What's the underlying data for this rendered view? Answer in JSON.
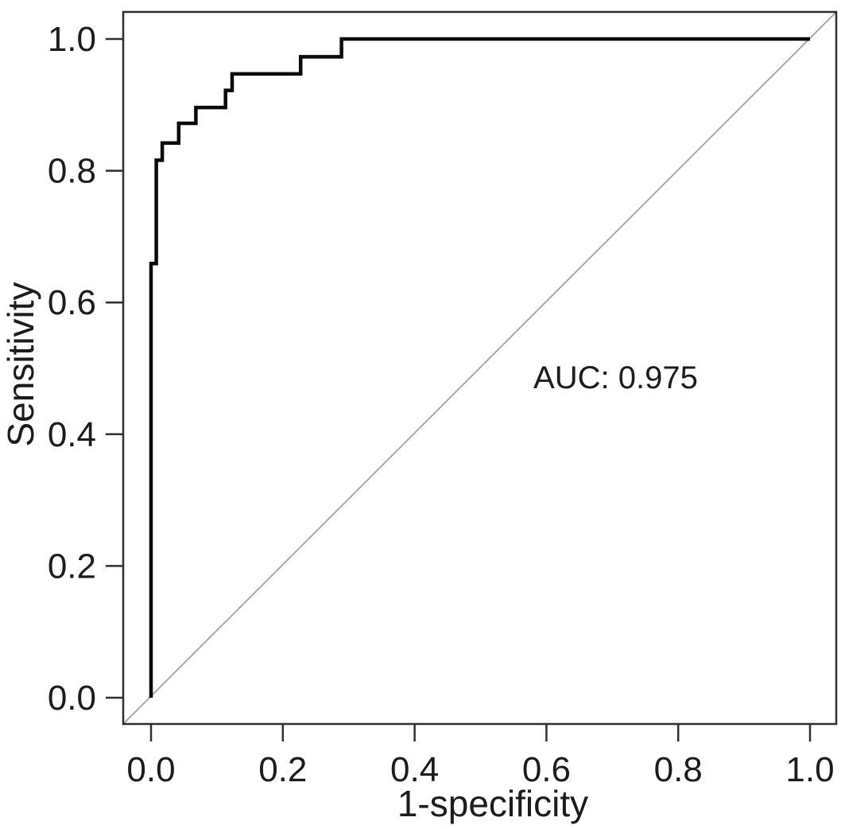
{
  "figure": {
    "background": "#ffffff"
  },
  "chart_data": {
    "type": "line",
    "subtype": "roc-curve-step",
    "title": "",
    "xlabel": "1-specificity",
    "ylabel": "Sensitivity",
    "xlim": [
      0,
      1
    ],
    "ylim": [
      0,
      1
    ],
    "grid": false,
    "legend_position": "none",
    "x_ticks": [
      {
        "value": 0.0,
        "label": "0.0"
      },
      {
        "value": 0.2,
        "label": "0.2"
      },
      {
        "value": 0.4,
        "label": "0.4"
      },
      {
        "value": 0.6,
        "label": "0.6"
      },
      {
        "value": 0.8,
        "label": "0.8"
      },
      {
        "value": 1.0,
        "label": "1.0"
      }
    ],
    "y_ticks": [
      {
        "value": 0.0,
        "label": "0.0"
      },
      {
        "value": 0.2,
        "label": "0.2"
      },
      {
        "value": 0.4,
        "label": "0.4"
      },
      {
        "value": 0.6,
        "label": "0.6"
      },
      {
        "value": 0.8,
        "label": "0.8"
      },
      {
        "value": 1.0,
        "label": "1.0"
      }
    ],
    "annotation": {
      "text": "AUC: 0.975",
      "x": 0.705,
      "y": 0.487
    },
    "series": [
      {
        "name": "ROC curve",
        "role": "roc-curve",
        "color": "#0a0a0a",
        "stroke_width": 4.5,
        "points": [
          [
            0.0,
            0.0
          ],
          [
            0.0,
            0.659
          ],
          [
            0.008,
            0.659
          ],
          [
            0.008,
            0.816
          ],
          [
            0.017,
            0.816
          ],
          [
            0.017,
            0.842
          ],
          [
            0.042,
            0.842
          ],
          [
            0.042,
            0.872
          ],
          [
            0.068,
            0.872
          ],
          [
            0.068,
            0.896
          ],
          [
            0.113,
            0.896
          ],
          [
            0.113,
            0.922
          ],
          [
            0.123,
            0.922
          ],
          [
            0.123,
            0.947
          ],
          [
            0.227,
            0.947
          ],
          [
            0.227,
            0.973
          ],
          [
            0.289,
            0.973
          ],
          [
            0.289,
            1.0
          ],
          [
            1.0,
            1.0
          ]
        ]
      },
      {
        "name": "Reference diagonal",
        "role": "reference-diagonal",
        "color": "#a9a9a9",
        "stroke_width": 2,
        "points": [
          [
            0.0,
            0.0
          ],
          [
            1.0,
            1.0
          ]
        ],
        "extend_to_box": true
      }
    ],
    "colors": {
      "axis": "#2f2f2f",
      "text": "#1c1c1c",
      "background": "#ffffff"
    }
  }
}
